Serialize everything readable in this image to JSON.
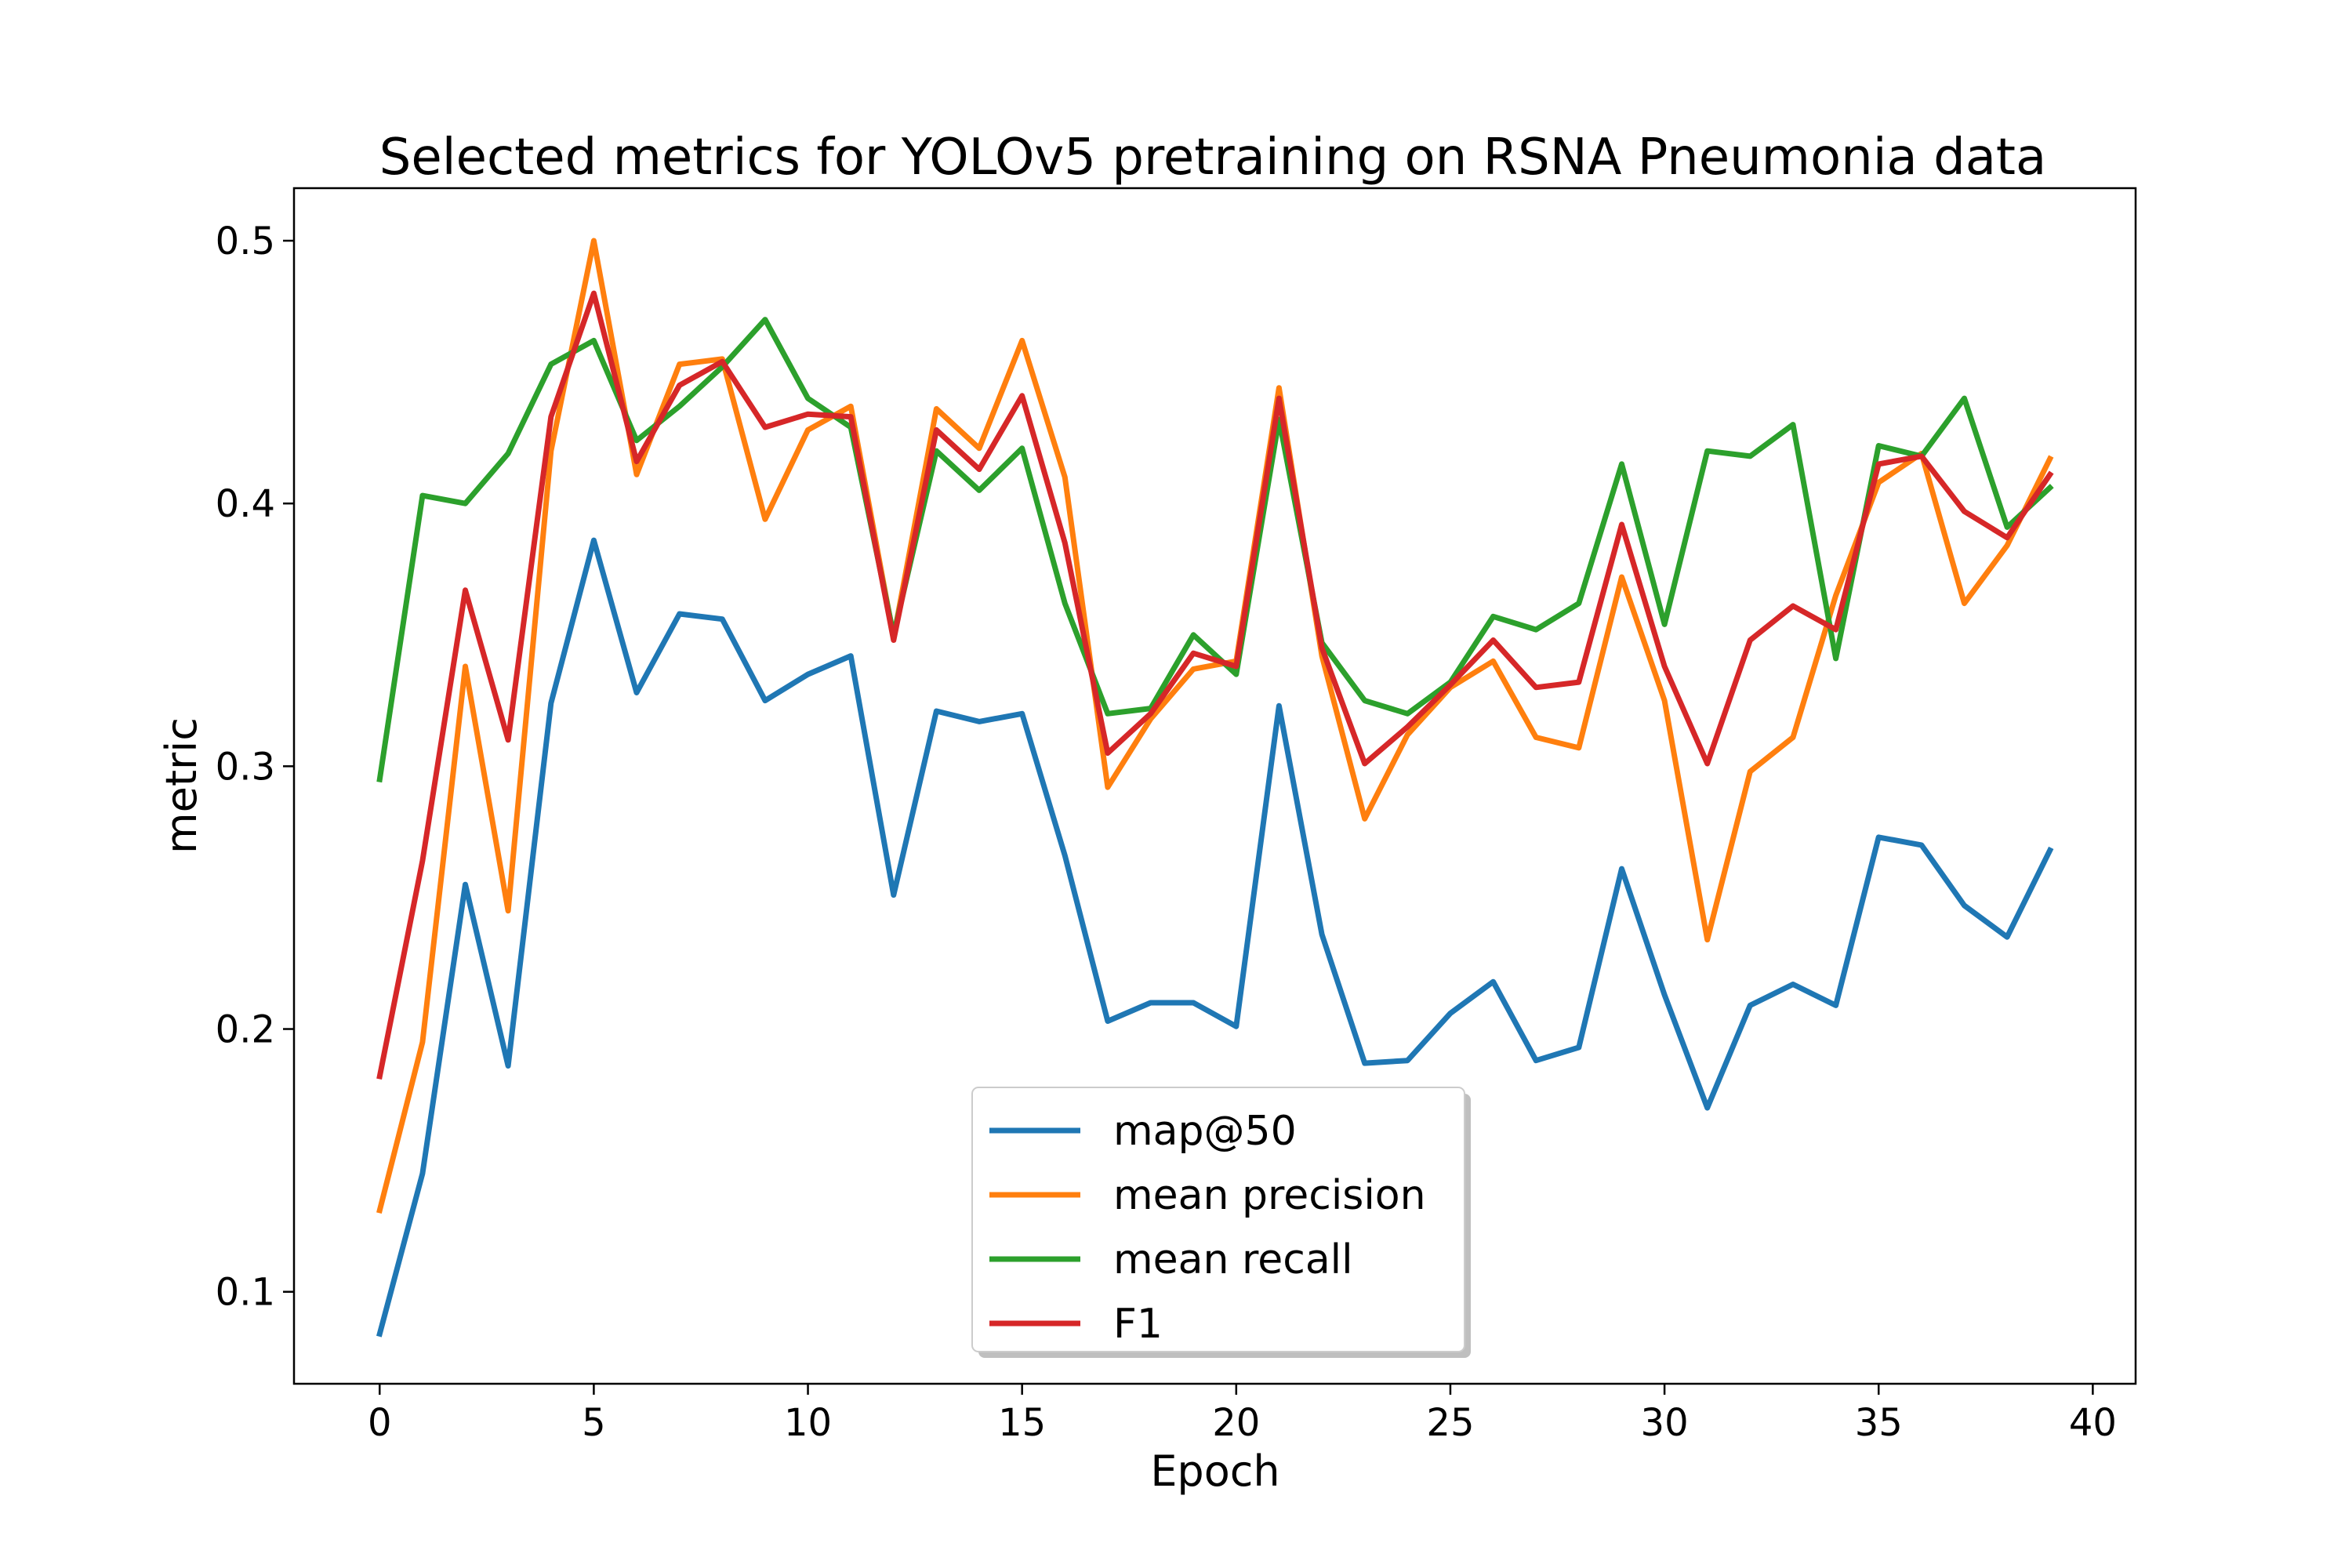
{
  "chart_data": {
    "type": "line",
    "title": "Selected metrics for YOLOv5 pretraining on RSNA Pneumonia data",
    "xlabel": "Epoch",
    "ylabel": "metric",
    "xlim": [
      -2,
      41
    ],
    "ylim": [
      0.065,
      0.52
    ],
    "xticks": [
      0,
      5,
      10,
      15,
      20,
      25,
      30,
      35,
      40
    ],
    "yticks": [
      0.1,
      0.2,
      0.3,
      0.4,
      0.5
    ],
    "x_tick_labels": [
      "0",
      "5",
      "10",
      "15",
      "20",
      "25",
      "30",
      "35",
      "40"
    ],
    "y_tick_labels": [
      "0.1",
      "0.2",
      "0.3",
      "0.4",
      "0.5"
    ],
    "grid": false,
    "legend_position": "lower center",
    "x": [
      0,
      1,
      2,
      3,
      4,
      5,
      6,
      7,
      8,
      9,
      10,
      11,
      12,
      13,
      14,
      15,
      16,
      17,
      18,
      19,
      20,
      21,
      22,
      23,
      24,
      25,
      26,
      27,
      28,
      29,
      30,
      31,
      32,
      33,
      34,
      35,
      36,
      37,
      38,
      39
    ],
    "series": [
      {
        "name": "map@50",
        "color": "#1f77b4",
        "values": [
          0.084,
          0.145,
          0.255,
          0.186,
          0.324,
          0.386,
          0.328,
          0.358,
          0.356,
          0.325,
          0.335,
          0.342,
          0.251,
          0.321,
          0.317,
          0.32,
          0.266,
          0.203,
          0.21,
          0.21,
          0.201,
          0.323,
          0.236,
          0.187,
          0.188,
          0.206,
          0.218,
          0.188,
          0.193,
          0.261,
          0.213,
          0.17,
          0.209,
          0.217,
          0.209,
          0.273,
          0.27,
          0.247,
          0.235,
          0.268
        ]
      },
      {
        "name": "mean precision",
        "color": "#ff7f0e",
        "values": [
          0.131,
          0.195,
          0.338,
          0.245,
          0.42,
          0.5,
          0.411,
          0.453,
          0.455,
          0.394,
          0.428,
          0.437,
          0.349,
          0.436,
          0.421,
          0.462,
          0.41,
          0.292,
          0.318,
          0.337,
          0.34,
          0.444,
          0.342,
          0.28,
          0.312,
          0.33,
          0.34,
          0.311,
          0.307,
          0.372,
          0.325,
          0.234,
          0.298,
          0.311,
          0.365,
          0.408,
          0.419,
          0.362,
          0.384,
          0.417
        ]
      },
      {
        "name": "mean recall",
        "color": "#2ca02c",
        "values": [
          0.295,
          0.403,
          0.4,
          0.419,
          0.453,
          0.462,
          0.424,
          0.437,
          0.452,
          0.47,
          0.44,
          0.429,
          0.35,
          0.42,
          0.405,
          0.421,
          0.362,
          0.32,
          0.322,
          0.35,
          0.335,
          0.432,
          0.347,
          0.325,
          0.32,
          0.332,
          0.357,
          0.352,
          0.362,
          0.415,
          0.354,
          0.42,
          0.418,
          0.43,
          0.341,
          0.422,
          0.418,
          0.44,
          0.391,
          0.406
        ]
      },
      {
        "name": "F1",
        "color": "#d62728",
        "values": [
          0.182,
          0.264,
          0.367,
          0.31,
          0.433,
          0.48,
          0.416,
          0.445,
          0.454,
          0.429,
          0.434,
          0.433,
          0.348,
          0.428,
          0.413,
          0.441,
          0.385,
          0.305,
          0.32,
          0.343,
          0.338,
          0.44,
          0.345,
          0.301,
          0.315,
          0.331,
          0.348,
          0.33,
          0.332,
          0.392,
          0.338,
          0.301,
          0.348,
          0.361,
          0.352,
          0.415,
          0.418,
          0.397,
          0.387,
          0.411
        ]
      }
    ]
  }
}
